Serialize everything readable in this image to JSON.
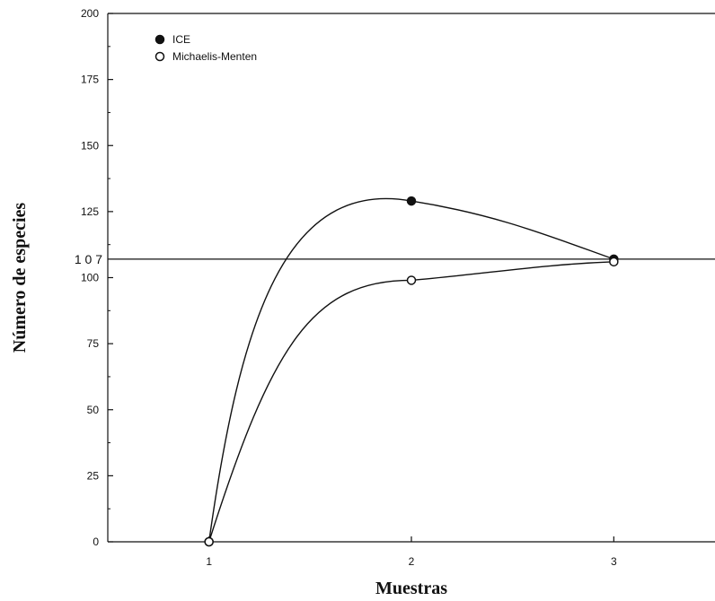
{
  "chart_data": {
    "type": "line",
    "xlabel": "Muestras",
    "ylabel": "Número de especies",
    "x_ticks": [
      "1",
      "2",
      "3"
    ],
    "y_ticks": [
      "0",
      "25",
      "50",
      "75",
      "100",
      "125",
      "150",
      "175",
      "200"
    ],
    "xlim": [
      0.5,
      3.5
    ],
    "ylim": [
      0,
      200
    ],
    "grid": false,
    "legend_position": "top-left",
    "reference_line": {
      "value": 107,
      "label": "1 0 7"
    },
    "series": [
      {
        "name": "ICE",
        "marker": "filled-circle",
        "x": [
          1,
          2,
          3
        ],
        "values": [
          0,
          129,
          107
        ]
      },
      {
        "name": "Michaelis-Menten",
        "marker": "open-circle",
        "x": [
          1,
          2,
          3
        ],
        "values": [
          0,
          99,
          106
        ]
      }
    ]
  }
}
